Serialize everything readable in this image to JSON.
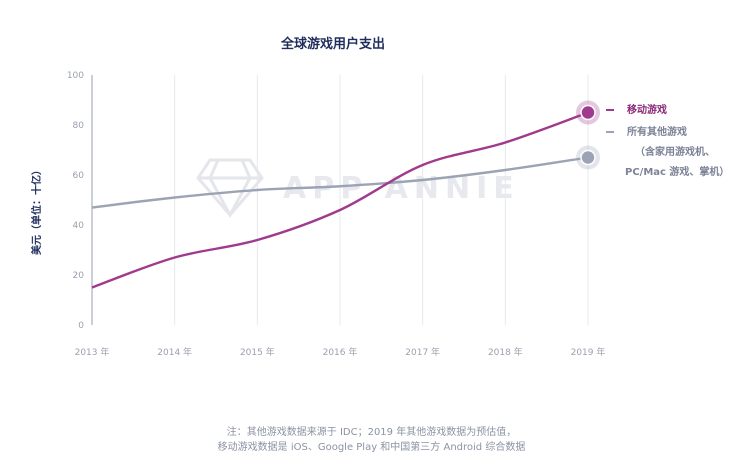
{
  "chart_data": {
    "type": "line",
    "title": "全球游戏用户支出",
    "ylabel": "美元（单位：十亿）",
    "xlabel": "",
    "x": [
      "2013 年",
      "2014 年",
      "2015 年",
      "2016 年",
      "2017 年",
      "2018 年",
      "2019 年"
    ],
    "ylim": [
      0,
      100
    ],
    "yticks": [
      0,
      20,
      40,
      60,
      80,
      100
    ],
    "grid": "vertical",
    "legend_position": "right",
    "series": [
      {
        "name": "移动游戏",
        "values": [
          15,
          27,
          34,
          46,
          64,
          73,
          85
        ],
        "color": "#a03a8c"
      },
      {
        "name": "所有其他游戏",
        "name_extra": [
          "（含家用游戏机、",
          "PC/Mac 游戏、掌机）"
        ],
        "values": [
          47,
          51,
          54,
          55.5,
          58,
          62,
          67
        ],
        "color": "#9ba3b5"
      }
    ]
  },
  "watermark": "APP ANNIE",
  "note": {
    "line1": "注：其他游戏数据来源于 IDC；2019 年其他游戏数据为预估值，",
    "line2": "移动游戏数据是 iOS、Google Play 和中国第三方 Android 综合数据"
  }
}
